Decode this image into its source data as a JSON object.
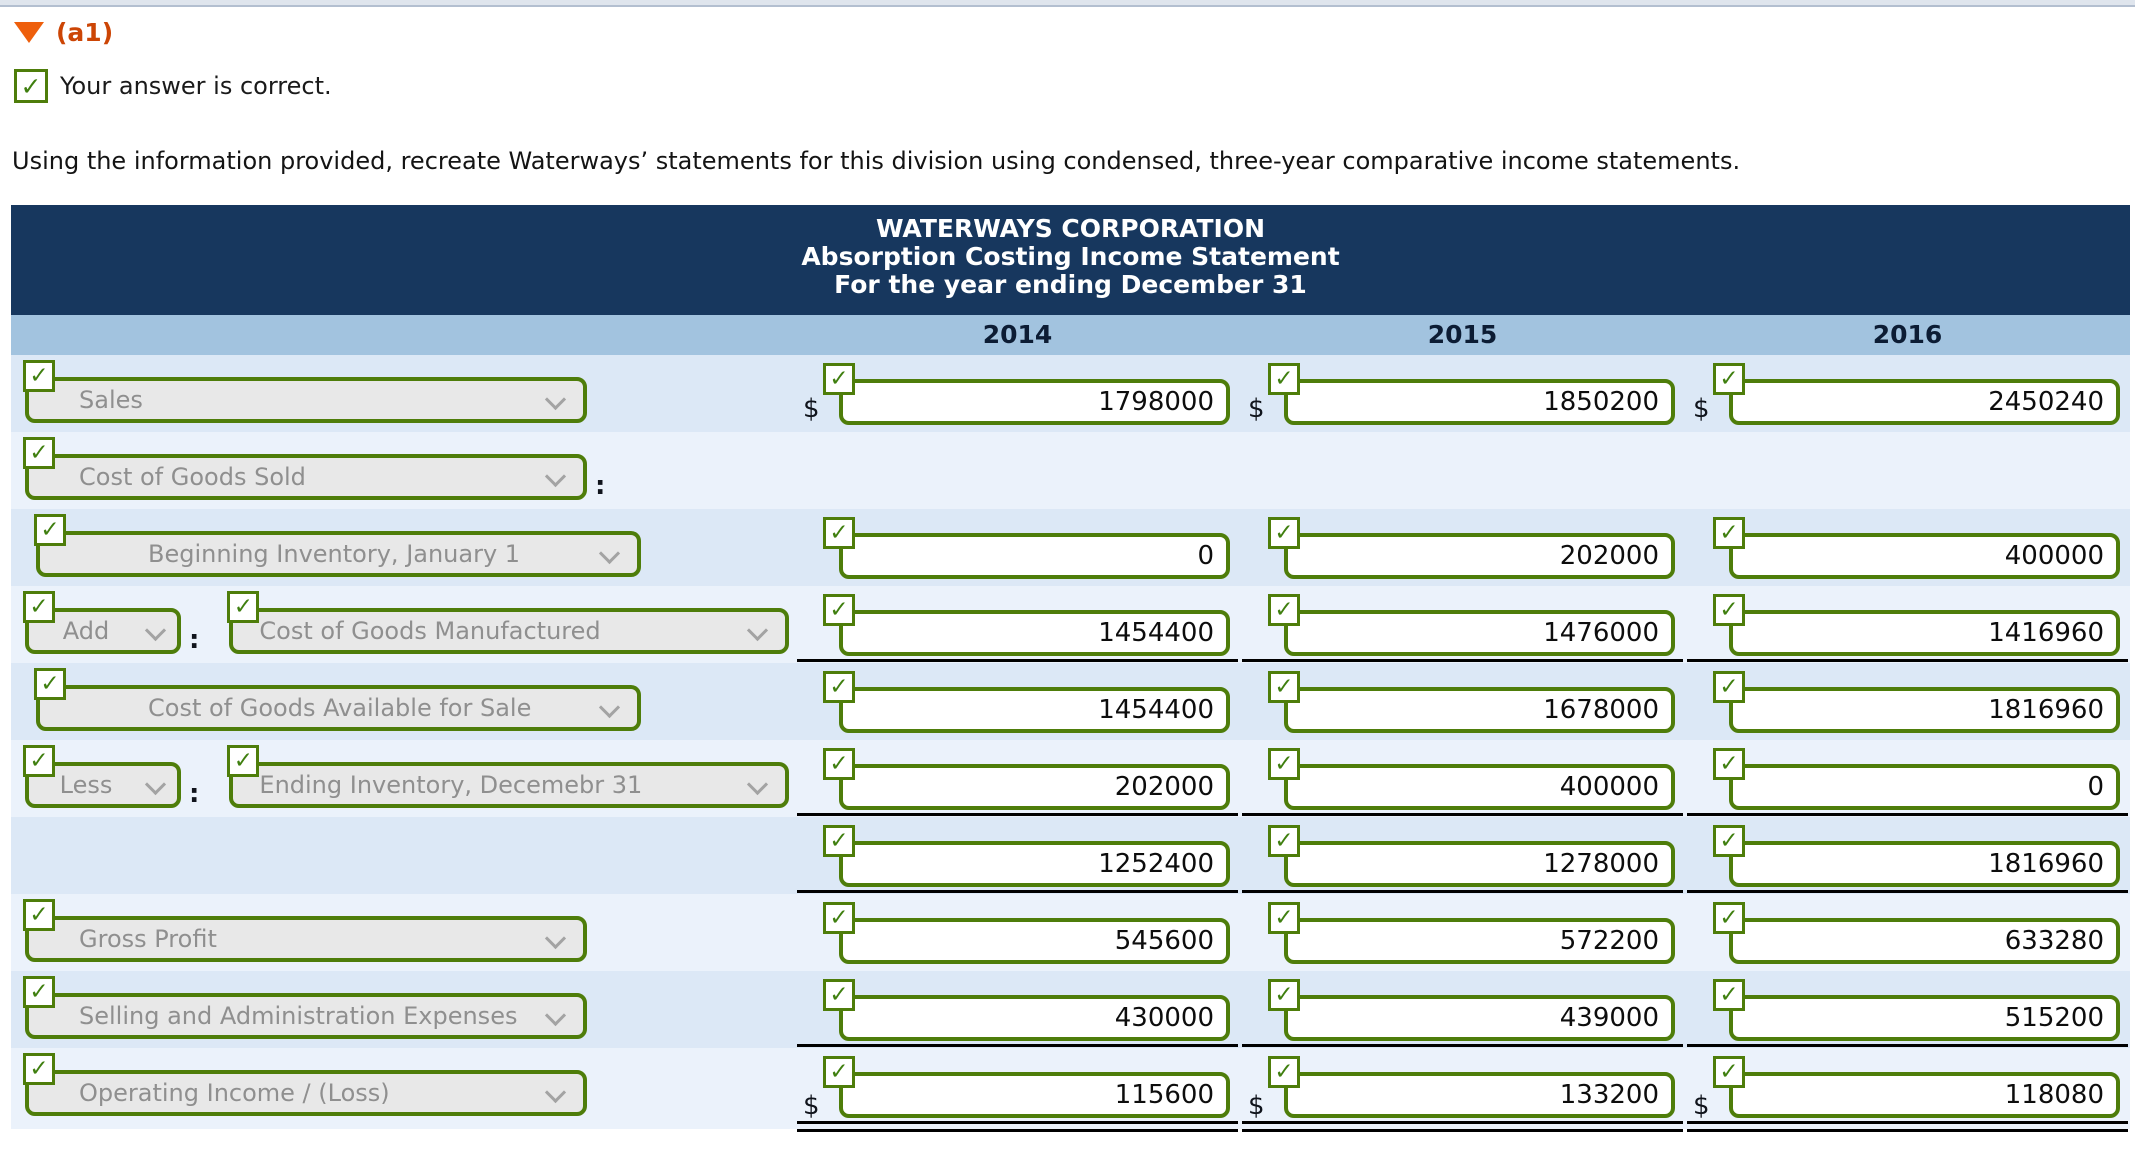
{
  "header": {
    "marker": "(a1)",
    "feedback": "Your answer is correct.",
    "instruction": "Using the information provided, recreate Waterways’ statements for this division using condensed, three-year comparative income statements."
  },
  "icons": {
    "check": "✓",
    "triangle": "collapse-triangle",
    "chevron": "chevron-down"
  },
  "currency": "$",
  "colon": ":",
  "colors": {
    "header_navy": "#17375e",
    "year_band_blue": "#a2c3df",
    "row_blue_dark": "#dce8f6",
    "row_blue_light": "#ebf2fb",
    "correct_green": "#4e7d0a",
    "marker_orange": "#cc4505"
  },
  "table": {
    "title_lines": [
      "WATERWAYS CORPORATION",
      "Absorption Costing Income Statement",
      "For the year ending December 31"
    ],
    "years": [
      "2014",
      "2015",
      "2016"
    ],
    "rows": [
      {
        "label": "Sales",
        "values": [
          "1798000",
          "1850200",
          "2450240"
        ]
      },
      {
        "label": "Cost of Goods Sold"
      },
      {
        "label": "Beginning Inventory, January 1",
        "values": [
          "0",
          "202000",
          "400000"
        ]
      },
      {
        "qualifier": "Add",
        "label": "Cost of Goods Manufactured",
        "values": [
          "1454400",
          "1476000",
          "1416960"
        ]
      },
      {
        "label": "Cost of Goods Available for Sale",
        "values": [
          "1454400",
          "1678000",
          "1816960"
        ]
      },
      {
        "qualifier": "Less",
        "label": "Ending Inventory, Decemebr 31",
        "values": [
          "202000",
          "400000",
          "0"
        ]
      },
      {
        "values": [
          "1252400",
          "1278000",
          "1816960"
        ]
      },
      {
        "label": "Gross Profit",
        "values": [
          "545600",
          "572200",
          "633280"
        ]
      },
      {
        "label": "Selling and Administration Expenses",
        "values": [
          "430000",
          "439000",
          "515200"
        ]
      },
      {
        "label": "Operating Income / (Loss)",
        "values": [
          "115600",
          "133200",
          "118080"
        ]
      }
    ]
  }
}
